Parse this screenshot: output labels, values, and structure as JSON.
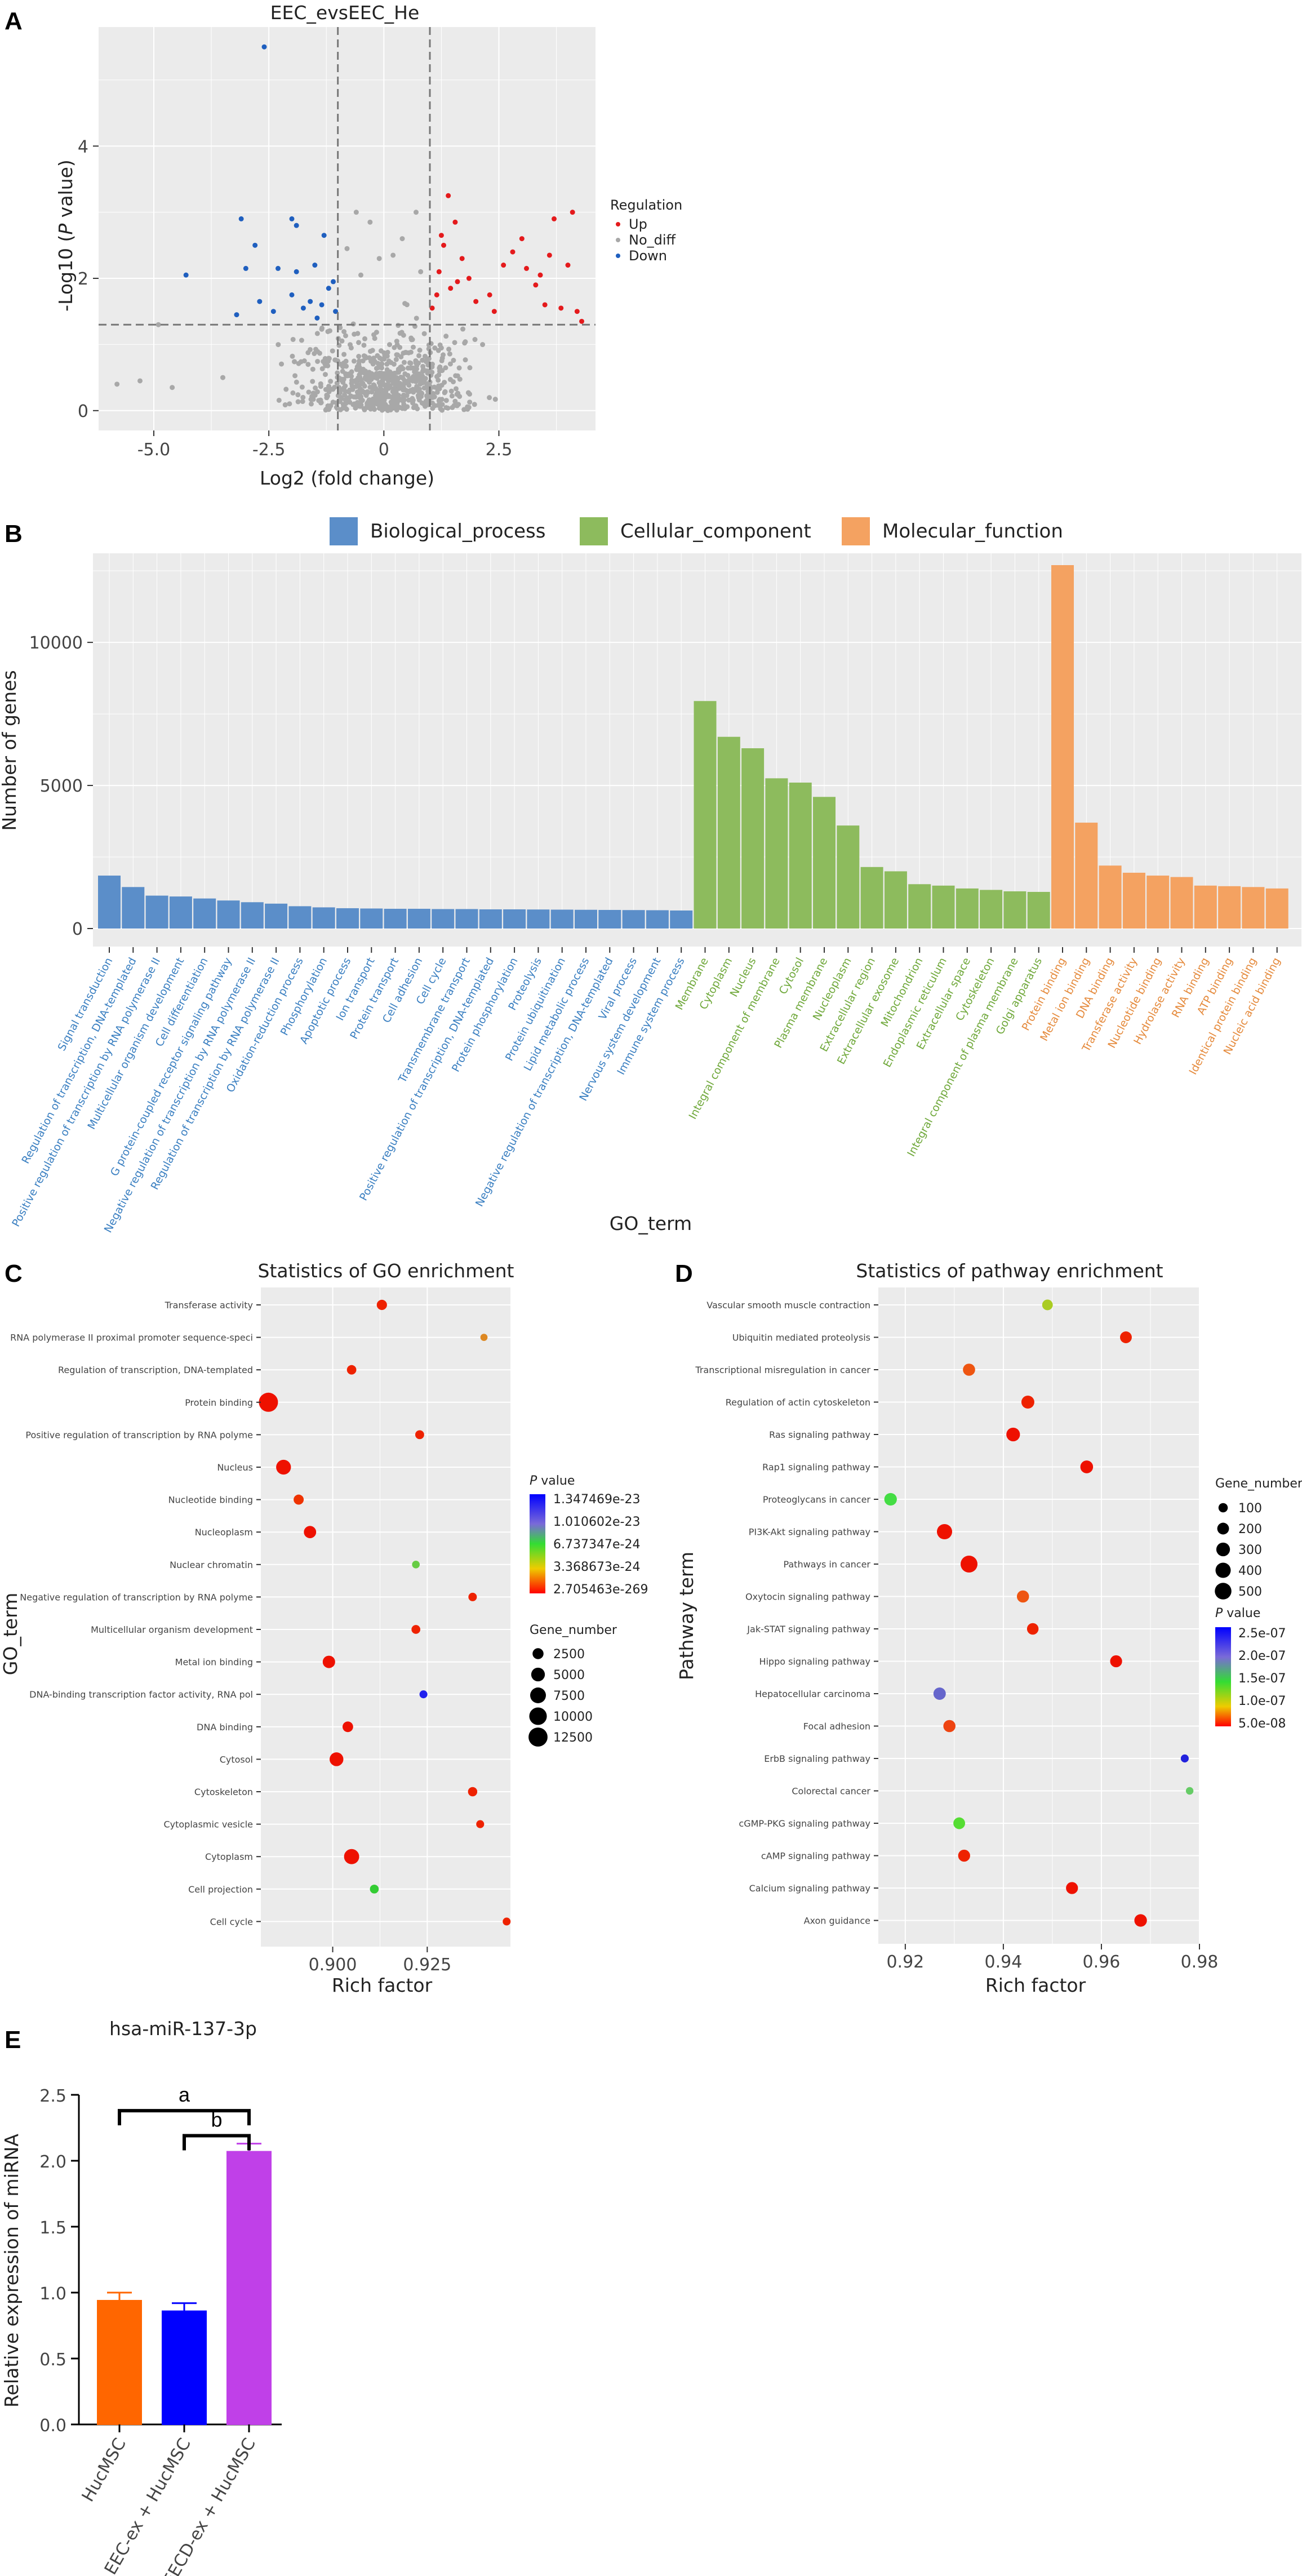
{
  "panel_labels": [
    "A",
    "B",
    "C",
    "D",
    "E"
  ],
  "colors": {
    "panel_bg": "#ebebeb",
    "grid": "#ffffff",
    "up": "#e41a1c",
    "no_diff": "#a8a8a8",
    "down": "#1f5fbf",
    "bp": "#5b8ec9",
    "cc": "#8dbb5d",
    "mf": "#f4a261",
    "bp_text": "#3a7fc1",
    "cc_text": "#6fa83a",
    "mf_text": "#e58a3c",
    "e_bars": [
      "#ff6600",
      "#0000ff",
      "#c040e8"
    ]
  },
  "chart_data": [
    {
      "id": "A",
      "type": "scatter",
      "title": "EEC_evsEEC_He",
      "xlabel": "Log2 (fold change)",
      "ylabel": "-Log10 (P value)",
      "xticks": [
        "-5.0",
        "-2.5",
        "0",
        "2.5"
      ],
      "yticks": [
        "0",
        "2",
        "4"
      ],
      "xlim": [
        -6.2,
        4.6
      ],
      "ylim": [
        -0.3,
        5.8
      ],
      "thresholds": {
        "x": [
          -1,
          1
        ],
        "y": 1.3
      },
      "legend": {
        "title": "Regulation",
        "items": [
          "Up",
          "No_diff",
          "Down"
        ],
        "position": "right"
      },
      "up_points": [
        [
          1.05,
          1.55
        ],
        [
          1.2,
          2.1
        ],
        [
          1.3,
          2.5
        ],
        [
          1.4,
          3.25
        ],
        [
          1.55,
          2.85
        ],
        [
          1.7,
          2.3
        ],
        [
          1.85,
          2.0
        ],
        [
          2.0,
          1.65
        ],
        [
          1.15,
          1.75
        ],
        [
          1.45,
          1.85
        ],
        [
          2.3,
          1.75
        ],
        [
          2.6,
          2.2
        ],
        [
          2.8,
          2.4
        ],
        [
          3.0,
          2.6
        ],
        [
          3.1,
          2.15
        ],
        [
          3.3,
          1.9
        ],
        [
          3.4,
          2.05
        ],
        [
          3.5,
          1.6
        ],
        [
          3.7,
          2.9
        ],
        [
          3.85,
          1.55
        ],
        [
          4.0,
          2.2
        ],
        [
          4.1,
          3.0
        ],
        [
          4.2,
          1.5
        ],
        [
          4.3,
          1.35
        ],
        [
          1.25,
          2.65
        ],
        [
          1.6,
          1.95
        ],
        [
          2.4,
          1.5
        ],
        [
          3.6,
          2.35
        ]
      ],
      "down_points": [
        [
          -2.6,
          5.5
        ],
        [
          -3.1,
          2.9
        ],
        [
          -2.0,
          2.9
        ],
        [
          -1.9,
          2.8
        ],
        [
          -1.3,
          2.65
        ],
        [
          -2.8,
          2.5
        ],
        [
          -3.0,
          2.15
        ],
        [
          -2.3,
          2.15
        ],
        [
          -1.5,
          2.2
        ],
        [
          -4.3,
          2.05
        ],
        [
          -1.9,
          2.1
        ],
        [
          -1.2,
          1.85
        ],
        [
          -2.0,
          1.75
        ],
        [
          -1.1,
          1.95
        ],
        [
          -1.6,
          1.65
        ],
        [
          -1.35,
          1.6
        ],
        [
          -1.75,
          1.55
        ],
        [
          -2.7,
          1.65
        ],
        [
          -2.4,
          1.5
        ],
        [
          -1.05,
          1.5
        ],
        [
          -1.45,
          1.4
        ],
        [
          -3.2,
          1.45
        ]
      ]
    },
    {
      "id": "B",
      "type": "bar",
      "xlabel": "GO_term",
      "ylabel": "Number of genes",
      "yticks": [
        "0",
        "5000",
        "10000"
      ],
      "ylim": [
        0,
        13000
      ],
      "legend": {
        "items": [
          "Biological_process",
          "Cellular_component",
          "Molecular_function"
        ],
        "position": "top"
      },
      "series": [
        {
          "name": "Biological_process",
          "categories": [
            "Signal transduction",
            "Regulation of transcription, DNA-templated",
            "Positive regulation of transcription by RNA polymerase II",
            "Multicellular organism development",
            "Cell differentiation",
            "G protein-coupled receptor signaling pathway",
            "Negative regulation of transcription by RNA polymerase II",
            "Regulation of transcription by RNA polymerase II",
            "Oxidation-reduction process",
            "Phosphorylation",
            "Apoptotic process",
            "Ion transport",
            "Protein transport",
            "Cell adhesion",
            "Cell cycle",
            "Transmembrane transport",
            "Positive regulation of transcription, DNA-templated",
            "Protein phosphorylation",
            "Proteolysis",
            "Protein ubiquitination",
            "Lipid metabolic process",
            "Negative regulation of transcription, DNA-templated",
            "Viral process",
            "Nervous system development",
            "Immune system process"
          ],
          "values": [
            1850,
            1450,
            1150,
            1120,
            1050,
            980,
            920,
            870,
            780,
            740,
            710,
            700,
            690,
            690,
            680,
            680,
            670,
            670,
            665,
            660,
            655,
            650,
            645,
            640,
            630
          ]
        },
        {
          "name": "Cellular_component",
          "categories": [
            "Membrane",
            "Cytoplasm",
            "Nucleus",
            "Integral component of membrane",
            "Cytosol",
            "Plasma membrane",
            "Nucleoplasm",
            "Extracellular region",
            "Extracellular exosome",
            "Mitochondrion",
            "Endoplasmic reticulum",
            "Extracellular space",
            "Cytoskeleton",
            "Integral component of plasma membrane",
            "Golgi apparatus"
          ],
          "values": [
            7950,
            6700,
            6300,
            5250,
            5100,
            4600,
            3600,
            2150,
            2000,
            1550,
            1500,
            1400,
            1350,
            1300,
            1280
          ]
        },
        {
          "name": "Molecular_function",
          "categories": [
            "Protein binding",
            "Metal ion binding",
            "DNA binding",
            "Transferase activity",
            "Nucleotide binding",
            "Hydrolase activity",
            "RNA binding",
            "ATP binding",
            "Identical protein binding",
            "Nucleic acid binding"
          ],
          "values": [
            12700,
            3700,
            2200,
            1950,
            1850,
            1800,
            1500,
            1480,
            1450,
            1400
          ]
        }
      ]
    },
    {
      "id": "C",
      "type": "scatter",
      "title": "Statistics of GO enrichment",
      "xlabel": "Rich factor",
      "ylabel": "GO_term",
      "xticks": [
        "0.900",
        "0.925"
      ],
      "xlim": [
        0.881,
        0.947
      ],
      "categories": [
        "Transferase activity",
        "RNA polymerase II proximal promoter sequence-speci",
        "Regulation of transcription, DNA-templated",
        "Protein binding",
        "Positive regulation of transcription by RNA polyme",
        "Nucleus",
        "Nucleotide binding",
        "Nucleoplasm",
        "Nuclear chromatin",
        "Negative regulation of transcription by RNA polyme",
        "Multicellular organism development",
        "Metal ion binding",
        "DNA-binding transcription factor activity, RNA pol",
        "DNA binding",
        "Cytosol",
        "Cytoskeleton",
        "Cytoplasmic vesicle",
        "Cytoplasm",
        "Cell projection",
        "Cell cycle"
      ],
      "points": [
        {
          "x": 0.913,
          "genes": 1950,
          "color": "#ee2200"
        },
        {
          "x": 0.94,
          "genes": 420,
          "color": "#dd8822"
        },
        {
          "x": 0.905,
          "genes": 1450,
          "color": "#ee2200"
        },
        {
          "x": 0.883,
          "genes": 12700,
          "color": "#ee1100"
        },
        {
          "x": 0.923,
          "genes": 1150,
          "color": "#ee2200"
        },
        {
          "x": 0.887,
          "genes": 6300,
          "color": "#ee1100"
        },
        {
          "x": 0.891,
          "genes": 1850,
          "color": "#ee3300"
        },
        {
          "x": 0.894,
          "genes": 3600,
          "color": "#ee1100"
        },
        {
          "x": 0.922,
          "genes": 600,
          "color": "#66cc44"
        },
        {
          "x": 0.937,
          "genes": 920,
          "color": "#ee2200"
        },
        {
          "x": 0.922,
          "genes": 1120,
          "color": "#ee2200"
        },
        {
          "x": 0.899,
          "genes": 3700,
          "color": "#ee1100"
        },
        {
          "x": 0.924,
          "genes": 700,
          "color": "#2222ee"
        },
        {
          "x": 0.904,
          "genes": 2200,
          "color": "#ee1100"
        },
        {
          "x": 0.901,
          "genes": 5100,
          "color": "#ee1100"
        },
        {
          "x": 0.937,
          "genes": 1350,
          "color": "#ee2200"
        },
        {
          "x": 0.939,
          "genes": 700,
          "color": "#ee2200"
        },
        {
          "x": 0.905,
          "genes": 6700,
          "color": "#ee1100"
        },
        {
          "x": 0.911,
          "genes": 1100,
          "color": "#33cc33"
        },
        {
          "x": 0.946,
          "genes": 680,
          "color": "#ee2200"
        }
      ],
      "legend_pvalue": {
        "title_italic": "P",
        "title_rest": " value",
        "ticks": [
          "1.347469e-23",
          "1.010602e-23",
          "6.737347e-24",
          "3.368673e-24",
          "2.705463e-269"
        ]
      },
      "legend_size": {
        "title": "Gene_number",
        "items": [
          "2500",
          "5000",
          "7500",
          "10000",
          "12500"
        ],
        "values": [
          2500,
          5000,
          7500,
          10000,
          12500
        ]
      }
    },
    {
      "id": "D",
      "type": "scatter",
      "title": "Statistics of pathway enrichment",
      "xlabel": "Rich factor",
      "ylabel": "Pathway term",
      "xticks": [
        "0.92",
        "0.94",
        "0.96",
        "0.98"
      ],
      "xlim": [
        0.9145,
        0.98
      ],
      "categories": [
        "Vascular smooth muscle contraction",
        "Ubiquitin mediated proteolysis",
        "Transcriptional misregulation in cancer",
        "Regulation of actin cytoskeleton",
        "Ras signaling pathway",
        "Rap1 signaling pathway",
        "Proteoglycans in cancer",
        "PI3K-Akt signaling pathway",
        "Pathways in cancer",
        "Oxytocin signaling pathway",
        "Jak-STAT signaling pathway",
        "Hippo signaling pathway",
        "Hepatocellular carcinoma",
        "Focal adhesion",
        "ErbB signaling pathway",
        "Colorectal cancer",
        "cGMP-PKG signaling pathway",
        "cAMP signaling pathway",
        "Calcium signaling pathway",
        "Axon guidance"
      ],
      "points": [
        {
          "x": 0.949,
          "genes": 150,
          "color": "#aacc22"
        },
        {
          "x": 0.965,
          "genes": 200,
          "color": "#ee2200"
        },
        {
          "x": 0.933,
          "genes": 220,
          "color": "#ee5511"
        },
        {
          "x": 0.945,
          "genes": 260,
          "color": "#ee2200"
        },
        {
          "x": 0.942,
          "genes": 300,
          "color": "#ee1100"
        },
        {
          "x": 0.957,
          "genes": 250,
          "color": "#ee1100"
        },
        {
          "x": 0.917,
          "genes": 240,
          "color": "#44dd44"
        },
        {
          "x": 0.928,
          "genes": 400,
          "color": "#ee1100"
        },
        {
          "x": 0.933,
          "genes": 520,
          "color": "#ee1100"
        },
        {
          "x": 0.944,
          "genes": 220,
          "color": "#ee5511"
        },
        {
          "x": 0.946,
          "genes": 190,
          "color": "#ee2200"
        },
        {
          "x": 0.963,
          "genes": 210,
          "color": "#ee1100"
        },
        {
          "x": 0.927,
          "genes": 230,
          "color": "#6666cc"
        },
        {
          "x": 0.929,
          "genes": 220,
          "color": "#ee4411"
        },
        {
          "x": 0.977,
          "genes": 60,
          "color": "#2222dd"
        },
        {
          "x": 0.978,
          "genes": 50,
          "color": "#66cc66"
        },
        {
          "x": 0.931,
          "genes": 200,
          "color": "#55dd33"
        },
        {
          "x": 0.932,
          "genes": 210,
          "color": "#ee2200"
        },
        {
          "x": 0.954,
          "genes": 210,
          "color": "#ee1100"
        },
        {
          "x": 0.968,
          "genes": 240,
          "color": "#ee1100"
        }
      ],
      "legend_size": {
        "title": "Gene_number",
        "items": [
          "100",
          "200",
          "300",
          "400",
          "500"
        ],
        "values": [
          100,
          200,
          300,
          400,
          500
        ]
      },
      "legend_pvalue": {
        "title_italic": "P",
        "title_rest": " value",
        "ticks": [
          "2.5e-07",
          "2.0e-07",
          "1.5e-07",
          "1.0e-07",
          "5.0e-08"
        ]
      }
    },
    {
      "id": "E",
      "type": "bar",
      "title": "hsa-miR-137-3p",
      "ylabel": "Relative expression of miRNA",
      "categories": [
        "HucMSC",
        "EEC-ex + HucMSC",
        "EECD-ex + HucMSC"
      ],
      "values": [
        0.94,
        0.86,
        2.07
      ],
      "errors": [
        0.06,
        0.06,
        0.06
      ],
      "yticks": [
        "0.0",
        "0.5",
        "1.0",
        "1.5",
        "2.0",
        "2.5"
      ],
      "ylim": [
        0,
        2.5
      ],
      "significance": [
        {
          "label": "a",
          "from": 0,
          "to": 2
        },
        {
          "label": "b",
          "from": 1,
          "to": 2
        }
      ]
    }
  ]
}
